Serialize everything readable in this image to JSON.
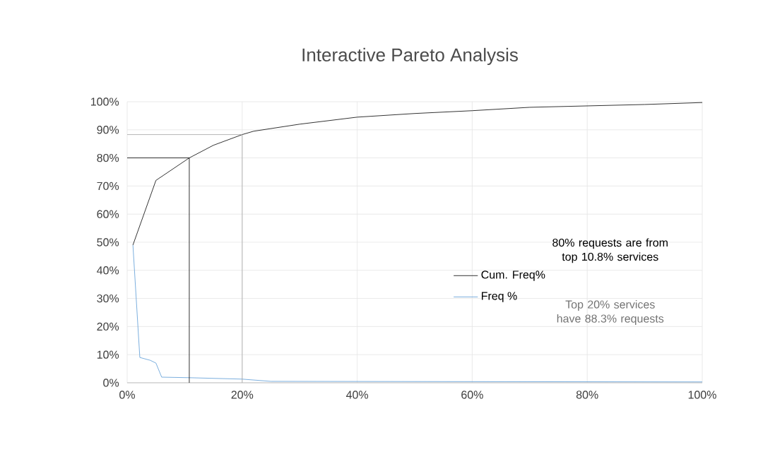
{
  "chart_data": {
    "type": "line",
    "title": "Interactive Pareto Analysis",
    "series": [
      {
        "name": "Cum. Freq%",
        "color": "#000000",
        "x": [
          1,
          5,
          10.8,
          15,
          20,
          22,
          30,
          40,
          50,
          60,
          70,
          80,
          90,
          100
        ],
        "values": [
          49,
          72,
          80,
          84.5,
          88.3,
          89.5,
          92,
          94.5,
          95.8,
          96.8,
          98,
          98.5,
          99,
          99.7
        ]
      },
      {
        "name": "Freq %",
        "color": "#5b9bd5",
        "x": [
          1,
          2.2,
          4,
          5,
          6,
          10.8,
          20,
          25,
          100
        ],
        "values": [
          49,
          9,
          8,
          7,
          2,
          1.8,
          1.3,
          0.5,
          0.3
        ]
      },
      {
        "color": "#000000",
        "x": [
          0,
          10.8,
          10.8
        ],
        "values": [
          80,
          80,
          0
        ]
      },
      {
        "color": "#a6a6a6",
        "x": [
          0,
          20,
          20
        ],
        "values": [
          88.3,
          88.3,
          0
        ]
      }
    ],
    "annotations": [
      "80% requests are from top 10.8% services",
      "Top 20% services have 88.3% requests"
    ],
    "xlim": [
      0,
      100
    ],
    "ylim": [
      0,
      100
    ],
    "xticks": [
      {
        "value": 0,
        "label": "0%"
      },
      {
        "value": 20,
        "label": "20%"
      },
      {
        "value": 40,
        "label": "40%"
      },
      {
        "value": 60,
        "label": "60%"
      },
      {
        "value": 80,
        "label": "80%"
      },
      {
        "value": 100,
        "label": "100%"
      }
    ],
    "yticks": [
      {
        "value": 0,
        "label": "0%"
      },
      {
        "value": 10,
        "label": "10%"
      },
      {
        "value": 20,
        "label": "20%"
      },
      {
        "value": 30,
        "label": "30%"
      },
      {
        "value": 40,
        "label": "40%"
      },
      {
        "value": 50,
        "label": "50%"
      },
      {
        "value": 60,
        "label": "60%"
      },
      {
        "value": 70,
        "label": "70%"
      },
      {
        "value": 80,
        "label": "80%"
      },
      {
        "value": 90,
        "label": "90%"
      },
      {
        "value": 100,
        "label": "100%"
      }
    ],
    "grid": true,
    "legend": "center",
    "marker": "none",
    "line_style": "solid"
  }
}
